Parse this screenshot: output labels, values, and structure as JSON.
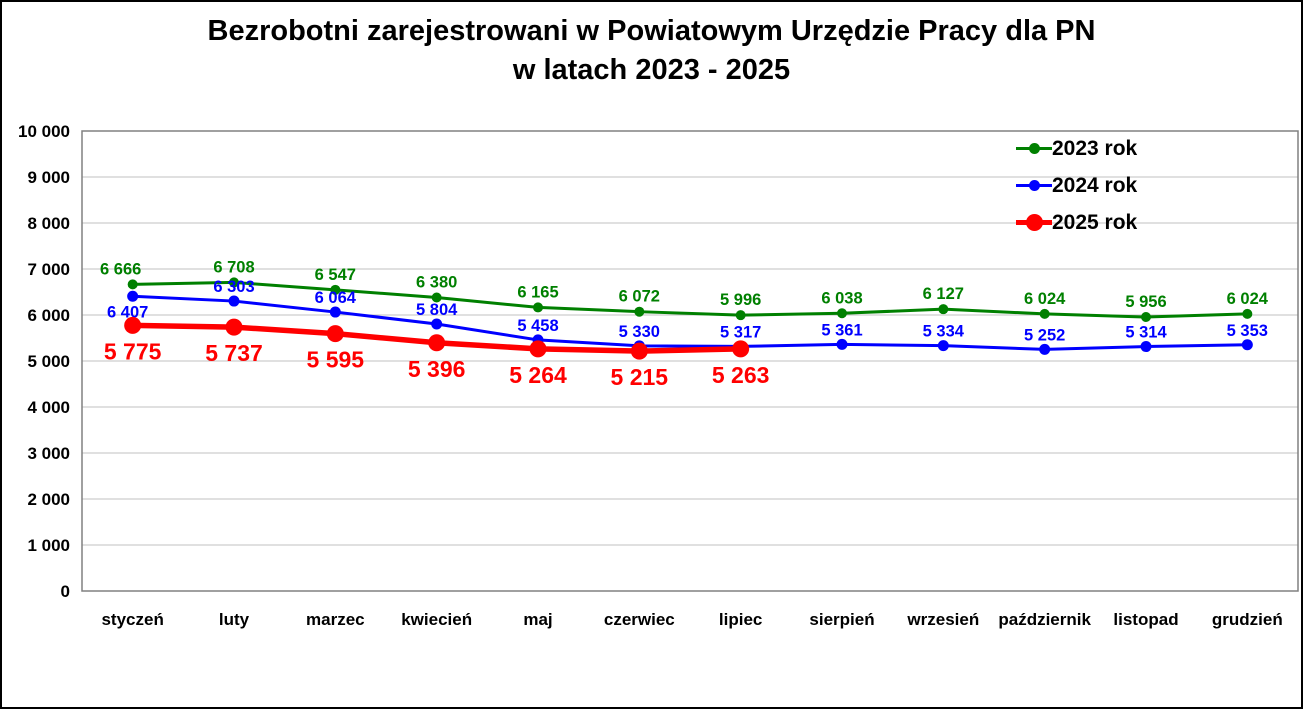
{
  "title": {
    "line1": "Bezrobotni zarejestrowani w Powiatowym Urzędzie Pracy dla PN",
    "line2": "w latach 2023 - 2025"
  },
  "chart_data": {
    "type": "line",
    "categories": [
      "styczeń",
      "luty",
      "marzec",
      "kwiecień",
      "maj",
      "czerwiec",
      "lipiec",
      "sierpień",
      "wrzesień",
      "październik",
      "listopad",
      "grudzień"
    ],
    "series": [
      {
        "name": "2023 rok",
        "color": "#008000",
        "values": [
          6666,
          6708,
          6547,
          6380,
          6165,
          6072,
          5996,
          6038,
          6127,
          6024,
          5956,
          6024
        ]
      },
      {
        "name": "2024 rok",
        "color": "#0000FF",
        "values": [
          6407,
          6303,
          6064,
          5804,
          5458,
          5330,
          5317,
          5361,
          5334,
          5252,
          5314,
          5353
        ]
      },
      {
        "name": "2025 rok",
        "color": "#FF0000",
        "values": [
          5775,
          5737,
          5595,
          5396,
          5264,
          5215,
          5263
        ]
      }
    ],
    "ylim": [
      0,
      10000
    ],
    "ytick_step": 1000,
    "number_format": "space-thousands",
    "grid": true,
    "legend_position": "top-right",
    "grid_color": "#C0C0C0",
    "axis_color": "#808080",
    "label_color": "#000000"
  }
}
